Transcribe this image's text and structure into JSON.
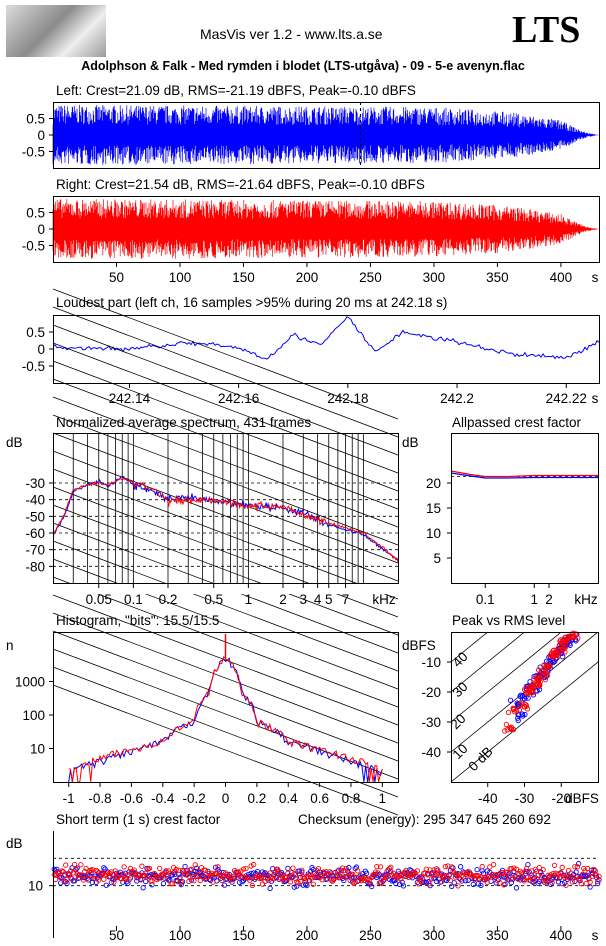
{
  "header": {
    "app_title": "MasVis ver 1.2 - www.lts.a.se",
    "logo_text": "LTS",
    "file_title": "Adolphson & Falk - Med rymden i blodet (LTS-utgåva) - 09 - 5-e avenyn.flac"
  },
  "panels": {
    "left": "Left: Crest=21.09 dB, RMS=-21.19 dBFS, Peak=-0.10 dBFS",
    "right": "Right: Crest=21.54 dB, RMS=-21.64 dBFS, Peak=-0.10 dBFS",
    "loudest": "Loudest part (left  ch, 16 samples >95% during 20 ms at 242.18 s)",
    "spectrum": "Normalized average spectrum, 431 frames",
    "allpass": "Allpassed crest factor",
    "histogram": "Histogram, \"bits\": 15.5/15.5",
    "peak_rms": "Peak vs RMS level",
    "short_term": "Short term (1 s) crest factor",
    "checksum": "Checksum (energy):   295 347 645 260 692"
  },
  "colors": {
    "left": "#0000ff",
    "right": "#ff0000"
  },
  "chart_data": [
    {
      "type": "area",
      "name": "left-waveform",
      "title": "Left: Crest=21.09 dB, RMS=-21.19 dBFS, Peak=-0.10 dBFS",
      "ylim": [
        -1,
        1
      ],
      "xlim": [
        0,
        430
      ],
      "yticks": [
        "0.5",
        "0",
        "-0.5"
      ],
      "peak_marker_x": 242.18,
      "envelope": {
        "x": [
          0,
          300,
          360,
          400,
          410,
          420,
          430
        ],
        "amplitude": [
          0.92,
          0.85,
          0.7,
          0.45,
          0.25,
          0.08,
          0
        ]
      }
    },
    {
      "type": "area",
      "name": "right-waveform",
      "title": "Right: Crest=21.54 dB, RMS=-21.64 dBFS, Peak=-0.10 dBFS",
      "ylim": [
        -1,
        1
      ],
      "xlim": [
        0,
        430
      ],
      "yticks": [
        "0.5",
        "0",
        "-0.5"
      ],
      "xticks": [
        "50",
        "100",
        "150",
        "200",
        "250",
        "300",
        "350",
        "400",
        "s"
      ],
      "envelope": {
        "x": [
          0,
          300,
          360,
          400,
          410,
          420,
          430
        ],
        "amplitude": [
          0.92,
          0.85,
          0.7,
          0.45,
          0.25,
          0.08,
          0
        ]
      }
    },
    {
      "type": "line",
      "name": "loudest-part",
      "title": "Loudest part (left  ch, 16 samples >95% during 20 ms at 242.18 s)",
      "ylim": [
        -1,
        1
      ],
      "xlim": [
        242.126,
        242.226
      ],
      "yticks": [
        "0.5",
        "0",
        "-0.5"
      ],
      "xticks": [
        "242.14",
        "242.16",
        "242.18",
        "242.2",
        "242.22",
        "s"
      ],
      "x": [
        242.126,
        242.14,
        242.15,
        242.16,
        242.165,
        242.17,
        242.175,
        242.18,
        242.185,
        242.19,
        242.2,
        242.21,
        242.22,
        242.226
      ],
      "y": [
        0.05,
        0.0,
        0.18,
        0.05,
        -0.3,
        0.42,
        0.1,
        0.95,
        -0.1,
        0.5,
        0.2,
        -0.15,
        -0.25,
        0.2
      ]
    },
    {
      "type": "line",
      "name": "spectrum",
      "title": "Normalized average spectrum, 431 frames",
      "ylabel": "dB",
      "xlabel": "kHz",
      "ylim": [
        -90,
        0
      ],
      "yticks": [
        "-30",
        "-40",
        "-50",
        "-60",
        "-70",
        "-80"
      ],
      "xticks": [
        "0.05",
        "0.1",
        "0.2",
        "0.5",
        "1",
        "2",
        "3",
        "4",
        "5",
        "7",
        "kHz"
      ],
      "series": [
        {
          "x": [
            0.02,
            0.025,
            0.03,
            0.04,
            0.05,
            0.06,
            0.08,
            0.1,
            0.15,
            0.2,
            0.3,
            0.5,
            1,
            2,
            3,
            5,
            7,
            10,
            15,
            20
          ],
          "y": [
            -62,
            -50,
            -35,
            -31,
            -29,
            -32,
            -26,
            -31,
            -35,
            -40,
            -39,
            -41,
            -43,
            -45,
            -48,
            -55,
            -58,
            -61,
            -70,
            -76
          ]
        },
        {
          "x": [
            0.02,
            0.025,
            0.03,
            0.04,
            0.05,
            0.06,
            0.08,
            0.1,
            0.15,
            0.2,
            0.3,
            0.5,
            1,
            2,
            3,
            5,
            7,
            10,
            15,
            20
          ],
          "y": [
            -61,
            -49,
            -34,
            -31,
            -30,
            -31,
            -27,
            -30,
            -34,
            -41,
            -40,
            -40,
            -44,
            -44,
            -49,
            -54,
            -57,
            -60,
            -69,
            -77
          ]
        }
      ]
    },
    {
      "type": "line",
      "name": "allpassed-crest",
      "title": "Allpassed crest factor",
      "ylabel": "dB",
      "xlabel": "kHz",
      "ylim": [
        0,
        30
      ],
      "yticks": [
        "20",
        "15",
        "10",
        "5"
      ],
      "xticks": [
        "0.1",
        "1",
        "2",
        "kHz"
      ],
      "series": [
        {
          "x": [
            0.02,
            0.05,
            0.1,
            0.3,
            1,
            3,
            10,
            20
          ],
          "y": [
            22.0,
            21.4,
            21.0,
            21.0,
            21.1,
            21.1,
            21.1,
            21.1
          ]
        },
        {
          "x": [
            0.02,
            0.05,
            0.1,
            0.3,
            1,
            3,
            10,
            20
          ],
          "y": [
            22.4,
            21.7,
            21.3,
            21.3,
            21.5,
            21.5,
            21.5,
            21.5
          ]
        }
      ]
    },
    {
      "type": "line",
      "name": "histogram",
      "title": "Histogram, \"bits\": 15.5/15.5",
      "ylabel": "n",
      "yscale": "log",
      "yticks": [
        "1000",
        "100",
        "10"
      ],
      "xticks": [
        "-1",
        "-0.8",
        "-0.6",
        "-0.4",
        "-0.2",
        "0",
        "0.2",
        "0.4",
        "0.6",
        "0.8",
        "1"
      ],
      "xlim": [
        -1.1,
        1.1
      ],
      "series": [
        {
          "x": [
            -1,
            -0.8,
            -0.6,
            -0.4,
            -0.2,
            -0.1,
            0,
            0.1,
            0.2,
            0.4,
            0.6,
            0.8,
            1
          ],
          "y": [
            2,
            4,
            8,
            15,
            60,
            500,
            5000,
            500,
            60,
            15,
            8,
            4,
            2
          ]
        },
        {
          "x": [
            -1,
            -0.8,
            -0.6,
            -0.4,
            -0.2,
            -0.1,
            0,
            0.1,
            0.2,
            0.4,
            0.6,
            0.8,
            1
          ],
          "y": [
            2,
            5,
            9,
            16,
            62,
            520,
            5000,
            520,
            62,
            16,
            9,
            5,
            2
          ]
        }
      ]
    },
    {
      "type": "scatter",
      "name": "peak-vs-rms",
      "title": "Peak vs RMS level",
      "ylabel": "dBFS",
      "xlabel": "dBFS",
      "xlim": [
        -50,
        -10
      ],
      "ylim": [
        -50,
        0
      ],
      "yticks": [
        "-10",
        "-20",
        "-30",
        "-40"
      ],
      "xticks": [
        "-40",
        "-30",
        "-20",
        "dBFS"
      ],
      "crest_lines": [
        "40",
        "30",
        "20",
        "10",
        "0 dB"
      ],
      "series": [
        {
          "x": [
            -32,
            -30,
            -28,
            -26,
            -24,
            -23,
            -22,
            -21,
            -20,
            -19,
            -18,
            -17,
            -25,
            -27,
            -31
          ],
          "y": [
            -24,
            -22,
            -18,
            -15,
            -12,
            -10,
            -9,
            -7,
            -6,
            -4,
            -3,
            -2,
            -14,
            -20,
            -28
          ]
        },
        {
          "x": [
            -33,
            -29,
            -27,
            -25,
            -24,
            -22,
            -21,
            -20,
            -19,
            -18,
            -17,
            -26,
            -28,
            -30,
            -34
          ],
          "y": [
            -26,
            -20,
            -17,
            -14,
            -11,
            -8,
            -6,
            -5,
            -3,
            -2,
            -1,
            -16,
            -19,
            -25,
            -32
          ]
        }
      ]
    },
    {
      "type": "scatter",
      "name": "short-term-crest",
      "title": "Short term (1 s) crest factor",
      "ylabel": "dB",
      "xlim": [
        0,
        430
      ],
      "ylim": [
        0,
        30
      ],
      "yticks": [
        "10"
      ],
      "xticks": [
        "50",
        "100",
        "150",
        "200",
        "250",
        "300",
        "350",
        "400",
        "s"
      ],
      "mean_left": 13.5,
      "mean_right": 13.8,
      "spread": 3.5
    }
  ]
}
